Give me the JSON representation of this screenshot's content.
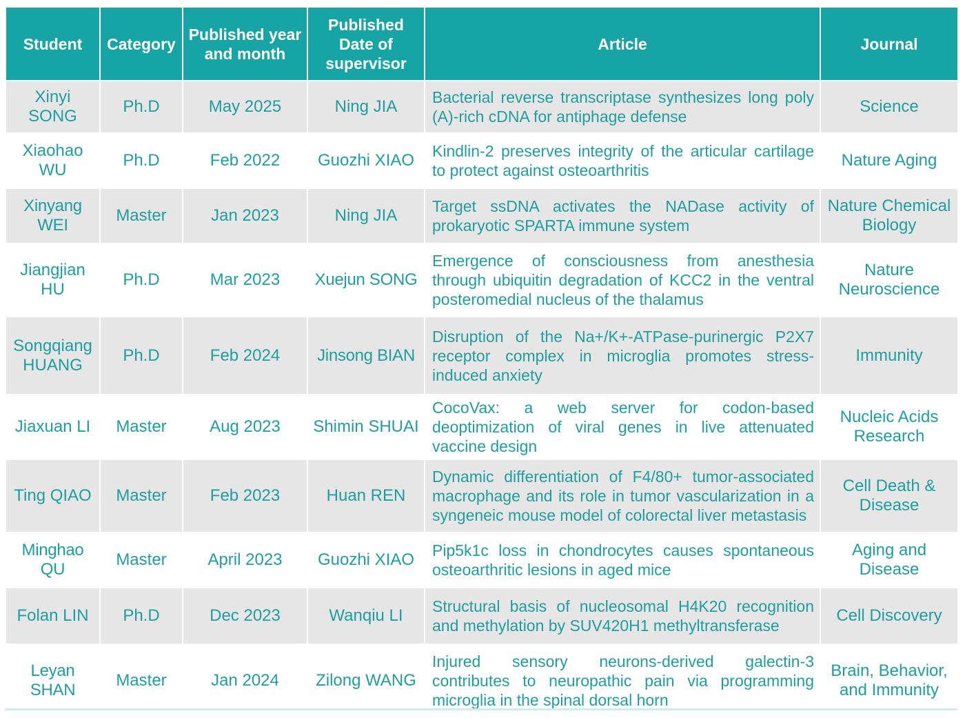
{
  "columns": [
    "Student",
    "Category",
    "Published year and month",
    "Published Date of supervisor",
    "Article",
    "Journal"
  ],
  "rows": [
    {
      "student": "Xinyi SONG",
      "category": "Ph.D",
      "date": "May 2025",
      "supervisor": "Ning JIA",
      "article": "Bacterial reverse transcriptase synthesizes long poly (A)-rich cDNA for antiphage defense",
      "journal": "Science"
    },
    {
      "student": "Xiaohao WU",
      "category": "Ph.D",
      "date": "Feb 2022",
      "supervisor": "Guozhi XIAO",
      "article": "Kindlin-2 preserves integrity of the articular cartilage to protect against osteoarthritis",
      "journal": "Nature Aging"
    },
    {
      "student": "Xinyang WEI",
      "category": "Master",
      "date": "Jan 2023",
      "supervisor": "Ning JIA",
      "article": "Target ssDNA activates the NADase activity of prokaryotic SPARTA immune system",
      "journal": "Nature Chemical Biology"
    },
    {
      "student": "Jiangjian HU",
      "category": "Ph.D",
      "date": "Mar 2023",
      "supervisor": "Xuejun SONG",
      "article": "Emergence of consciousness from anesthesia through ubiquitin degradation of KCC2 in the ventral posteromedial nucleus of the thalamus",
      "journal": "Nature Neuroscience"
    },
    {
      "student": "Songqiang HUANG",
      "category": "Ph.D",
      "date": "Feb 2024",
      "supervisor": "Jinsong BIAN",
      "article": "Disruption of the Na+/K+-ATPase-purinergic P2X7 receptor complex in microglia promotes stress-induced anxiety",
      "journal": "Immunity"
    },
    {
      "student": "Jiaxuan LI",
      "category": "Master",
      "date": "Aug 2023",
      "supervisor": "Shimin SHUAI",
      "article": "CocoVax: a web server for codon-based deoptimization of viral genes in live attenuated vaccine design",
      "journal": "Nucleic Acids Research"
    },
    {
      "student": "Ting QIAO",
      "category": "Master",
      "date": "Feb 2023",
      "supervisor": "Huan REN",
      "article": "Dynamic differentiation of F4/80+ tumor-associated macrophage and its role in tumor vascularization in a syngeneic mouse model of colorectal liver metastasis",
      "journal": "Cell Death & Disease"
    },
    {
      "student": "Minghao QU",
      "category": "Master",
      "date": "April 2023",
      "supervisor": "Guozhi XIAO",
      "article": "Pip5k1c loss in chondrocytes causes spontaneous osteoarthritic lesions in aged mice",
      "journal": "Aging and Disease"
    },
    {
      "student": "Folan LIN",
      "category": "Ph.D",
      "date": "Dec 2023",
      "supervisor": "Wanqiu LI",
      "article": "Structural basis of nucleosomal H4K20 recognition and methylation by SUV420H1 methyltransferase",
      "journal": "Cell Discovery"
    },
    {
      "student": "Leyan SHAN",
      "category": "Master",
      "date": "Jan 2024",
      "supervisor": "Zilong WANG",
      "article": "Injured sensory neurons-derived galectin-3 contributes to neuropathic pain via programming microglia in the spinal dorsal horn",
      "journal": "Brain, Behavior, and Immunity"
    }
  ],
  "colors": {
    "header_bg": "#17a4a4",
    "text": "#1f9ea1",
    "stripe": "#e6e6e6"
  }
}
